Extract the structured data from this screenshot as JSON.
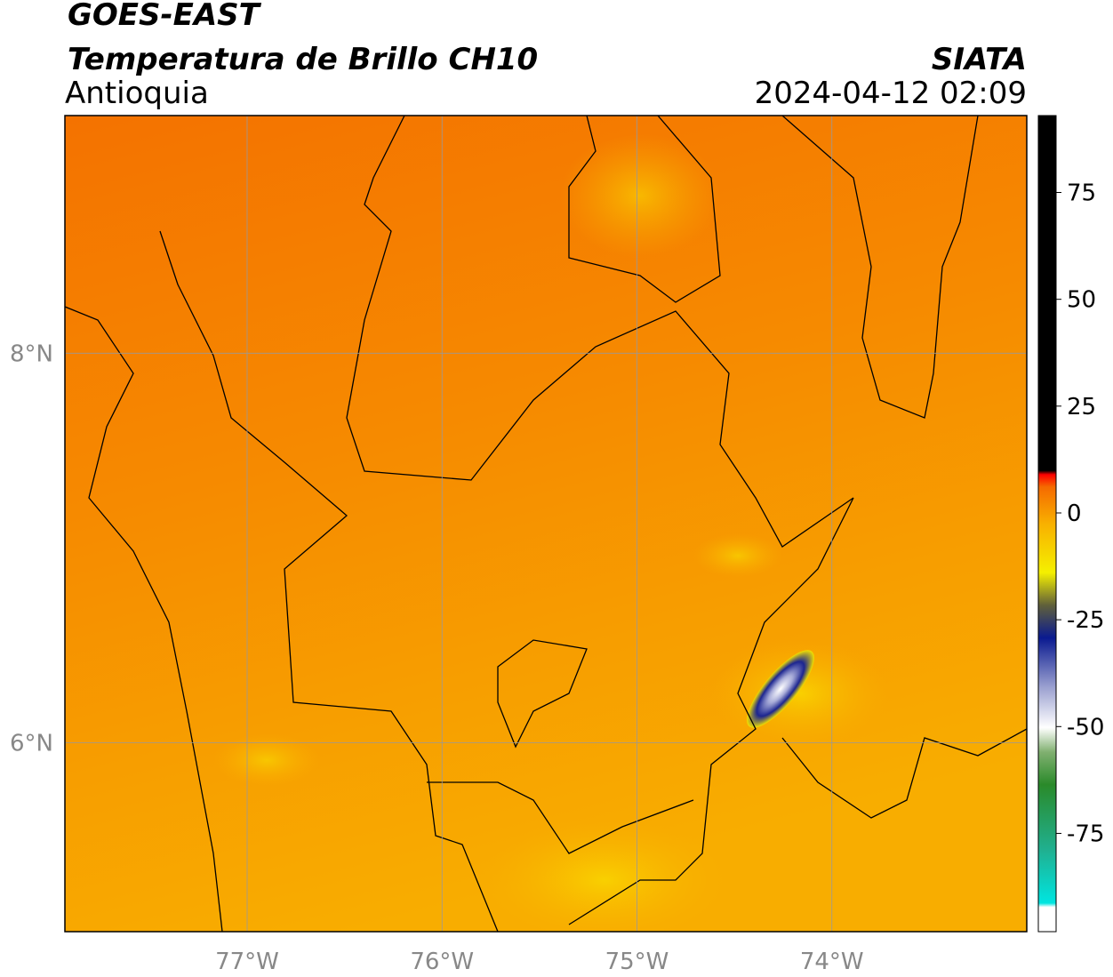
{
  "header": {
    "title": "GOES-EAST",
    "subtitle": "Temperatura de Brillo CH10",
    "region": "Antioquia",
    "source": "SIATA",
    "timestamp": "2024-04-12 02:09"
  },
  "map": {
    "xlim": [
      -77.935,
      -73.0
    ],
    "ylim": [
      5.03,
      9.22
    ],
    "xticks": [
      {
        "value": -77,
        "label": "77°W"
      },
      {
        "value": -76,
        "label": "76°W"
      },
      {
        "value": -75,
        "label": "75°W"
      },
      {
        "value": -74,
        "label": "74°W"
      }
    ],
    "yticks": [
      {
        "value": 6,
        "label": "6°N"
      },
      {
        "value": 8,
        "label": "8°N"
      }
    ],
    "grid": true
  },
  "colorbar": {
    "lim": [
      -98,
      93
    ],
    "ticks": [
      -75,
      -50,
      -25,
      0,
      25,
      50,
      75
    ]
  }
}
